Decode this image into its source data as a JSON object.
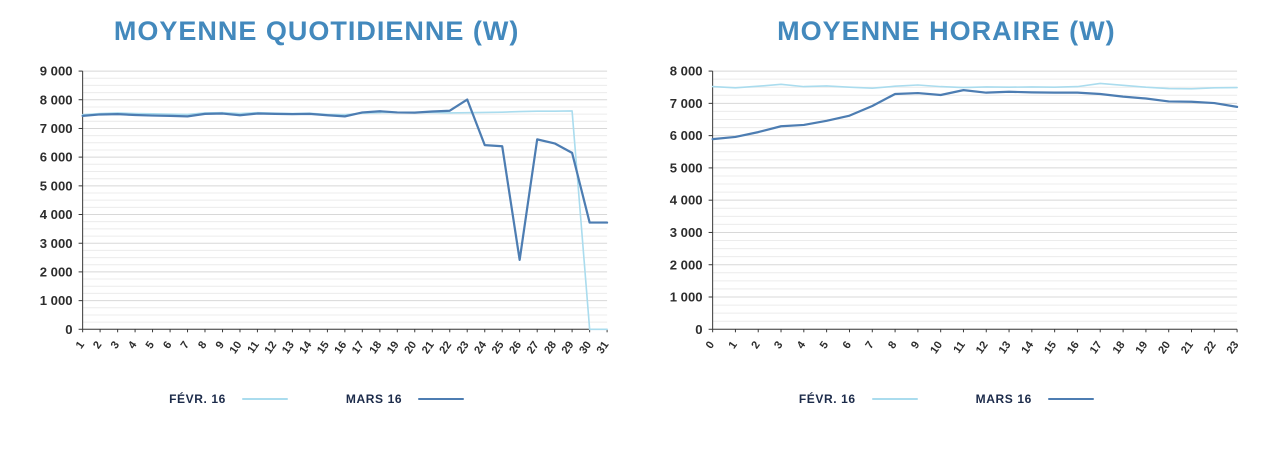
{
  "colors": {
    "title": "#4389bd",
    "legend_text": "#1c2b4a",
    "grid_minor": "#ececec",
    "grid_major": "#d8d8d8",
    "axis": "#3a3a3a",
    "tick_text": "#2d2d2d",
    "fevr_line": "#aadcee",
    "mars_line": "#4d7db2"
  },
  "chart_data": [
    {
      "type": "line",
      "title": "MOYENNE QUOTIDIENNE (W)",
      "xlabel": "",
      "ylabel": "",
      "grid": true,
      "legend_position": "bottom",
      "ylim": [
        0,
        9000
      ],
      "minor_grid_step": 250,
      "ytick_values": [
        0,
        1000,
        2000,
        3000,
        4000,
        5000,
        6000,
        7000,
        8000,
        9000
      ],
      "ytick_labels": [
        "0",
        "1 000",
        "2 000",
        "3 000",
        "4 000",
        "5 000",
        "6 000",
        "7 000",
        "8 000",
        "9 000"
      ],
      "x_labels": [
        "1",
        "2",
        "3",
        "4",
        "5",
        "6",
        "7",
        "8",
        "9",
        "10",
        "11",
        "12",
        "13",
        "14",
        "15",
        "16",
        "17",
        "18",
        "19",
        "20",
        "21",
        "22",
        "23",
        "24",
        "25",
        "26",
        "27",
        "28",
        "29",
        "30",
        "31"
      ],
      "series": [
        {
          "name": "FÉVR. 16",
          "color": "#aadcee",
          "width": 1.6,
          "values": [
            7480,
            7520,
            7540,
            7520,
            7510,
            7500,
            7490,
            7540,
            7550,
            7520,
            7550,
            7530,
            7520,
            7530,
            7490,
            7480,
            7530,
            7550,
            7560,
            7550,
            7560,
            7540,
            7550,
            7560,
            7570,
            7590,
            7600,
            7600,
            7610,
            0,
            0
          ]
        },
        {
          "name": "MARS 16",
          "color": "#4d7db2",
          "width": 2.2,
          "values": [
            7440,
            7490,
            7500,
            7470,
            7450,
            7440,
            7420,
            7510,
            7520,
            7460,
            7520,
            7510,
            7500,
            7510,
            7460,
            7420,
            7560,
            7600,
            7560,
            7550,
            7590,
            7620,
            8010,
            6420,
            6380,
            2420,
            6620,
            6480,
            6150,
            3720,
            3720
          ]
        }
      ]
    },
    {
      "type": "line",
      "title": "MOYENNE HORAIRE (W)",
      "xlabel": "",
      "ylabel": "",
      "grid": true,
      "legend_position": "bottom",
      "ylim": [
        0,
        8000
      ],
      "minor_grid_step": 250,
      "ytick_values": [
        0,
        1000,
        2000,
        3000,
        4000,
        5000,
        6000,
        7000,
        8000
      ],
      "ytick_labels": [
        "0",
        "1 000",
        "2 000",
        "3 000",
        "4 000",
        "5 000",
        "6 000",
        "7 000",
        "8 000"
      ],
      "x_labels": [
        "0",
        "1",
        "2",
        "3",
        "4",
        "5",
        "6",
        "7",
        "8",
        "9",
        "10",
        "11",
        "12",
        "13",
        "14",
        "15",
        "16",
        "17",
        "18",
        "19",
        "20",
        "21",
        "22",
        "23"
      ],
      "series": [
        {
          "name": "FÉVR. 16",
          "color": "#aadcee",
          "width": 1.6,
          "values": [
            7520,
            7480,
            7530,
            7590,
            7520,
            7540,
            7500,
            7470,
            7530,
            7570,
            7520,
            7490,
            7510,
            7500,
            7510,
            7500,
            7520,
            7620,
            7560,
            7500,
            7460,
            7450,
            7480,
            7490
          ]
        },
        {
          "name": "MARS 16",
          "color": "#4d7db2",
          "width": 2.2,
          "values": [
            5890,
            5960,
            6110,
            6290,
            6330,
            6460,
            6620,
            6920,
            7290,
            7320,
            7260,
            7410,
            7330,
            7360,
            7340,
            7330,
            7330,
            7290,
            7210,
            7150,
            7060,
            7050,
            7010,
            6890
          ]
        }
      ]
    }
  ]
}
